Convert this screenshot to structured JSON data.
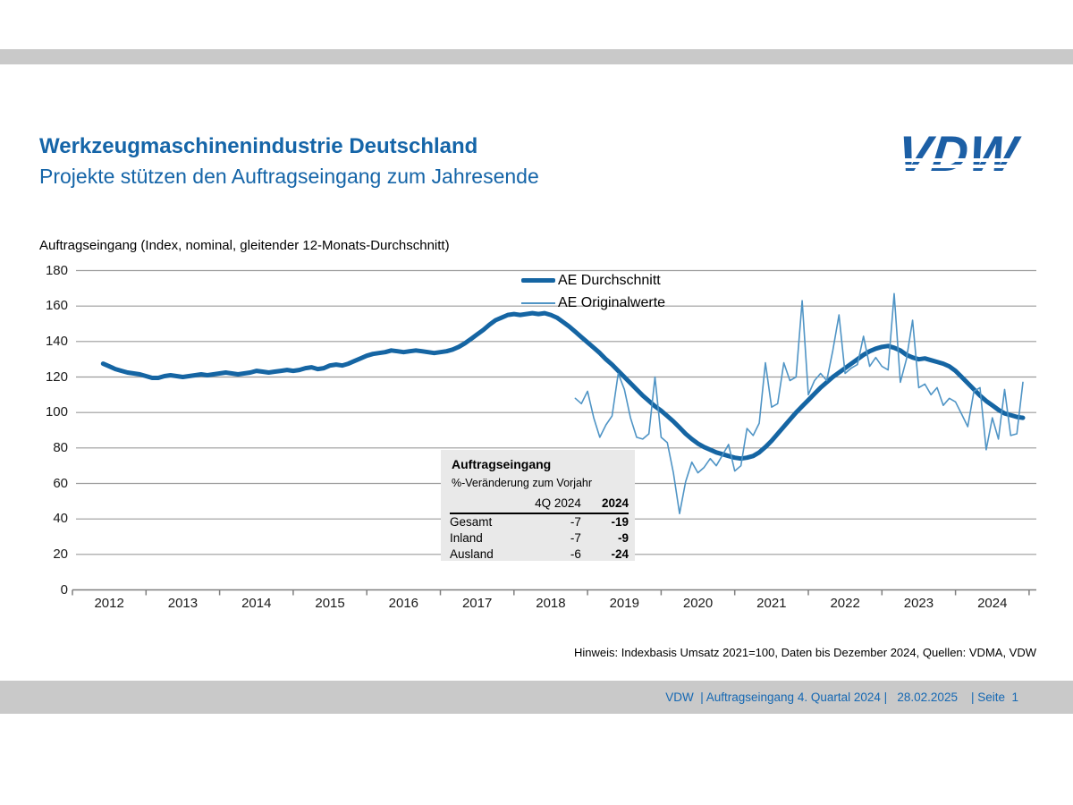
{
  "slide": {
    "title": "Werkzeugmaschinenindustrie Deutschland",
    "subtitle": "Projekte stützen den Auftragseingang zum Jahresende",
    "logo_text": "VDW",
    "footnote": "Hinweis: Indexbasis Umsatz 2021=100, Daten bis Dezember 2024, Quellen: VDMA, VDW",
    "footer_text": "VDW  | Auftragseingang 4. Quartal 2024 |   28.02.2025    | Seite  1"
  },
  "colors": {
    "accent_blue": "#1565a8",
    "logo_blue": "#1c5fa5",
    "avg_line": "#1565a3",
    "orig_line": "#4f94c5",
    "gridline": "#9c9c9c",
    "axis": "#7f7f7f",
    "bar_gray": "#c9c9c9",
    "table_bg": "#e9e9e9",
    "footer_text_blue": "#1568b3"
  },
  "chart_data": {
    "type": "line",
    "title": "Auftragseingang (Index, nominal, gleitender 12-Monats-Durchschnitt)",
    "x_tick_labels": [
      "2012",
      "2013",
      "2014",
      "2015",
      "2016",
      "2017",
      "2018",
      "2019",
      "2020",
      "2021",
      "2022",
      "2023",
      "2024"
    ],
    "y_ticks": [
      0,
      20,
      40,
      60,
      80,
      100,
      120,
      140,
      160,
      180
    ],
    "ylim": [
      0,
      180
    ],
    "grid": "horizontal-only",
    "legend_position": "top-center-inside",
    "series": [
      {
        "name": "AE Durchschnitt",
        "style": "thick",
        "color": "#1565a3",
        "width": 5,
        "start_month": "2012-06",
        "values": [
          127.5,
          126,
          124.5,
          123.5,
          122.5,
          122,
          121.5,
          120.5,
          119.5,
          119.5,
          120.5,
          121,
          120.5,
          120,
          120.5,
          121,
          121.5,
          121,
          121.5,
          122,
          122.5,
          122,
          121.5,
          122,
          122.5,
          123.5,
          123,
          122.5,
          123,
          123.5,
          124,
          123.5,
          124,
          125,
          125.5,
          124.5,
          125,
          126.5,
          127,
          126.5,
          127.5,
          129,
          130.5,
          132,
          133,
          133.5,
          134,
          135,
          134.5,
          134,
          134.5,
          135,
          134.5,
          134,
          133.5,
          134,
          134.5,
          135.5,
          137,
          139,
          141.5,
          144,
          146.5,
          149.5,
          152,
          153.5,
          155,
          155.5,
          155,
          155.5,
          156,
          155.5,
          156,
          155,
          153.5,
          151,
          148.5,
          145.5,
          142.5,
          139.5,
          136.5,
          133.5,
          130,
          127,
          123.5,
          120,
          116.5,
          113,
          109.5,
          106.5,
          103.5,
          101,
          98,
          95,
          91.5,
          88,
          85,
          82.5,
          80.5,
          79,
          77.5,
          76.5,
          75.5,
          74.5,
          74,
          74.5,
          75.5,
          77.5,
          80.5,
          84,
          88,
          92,
          96,
          100,
          103.5,
          107,
          110.5,
          114,
          117,
          120,
          122.5,
          125,
          127.5,
          130,
          132.5,
          134.5,
          136,
          137,
          137.5,
          136.5,
          135,
          132.5,
          131,
          130,
          130.5,
          129.5,
          128.5,
          127.5,
          126,
          123.5,
          120,
          116.5,
          113,
          109.5,
          106.5,
          104,
          101.5,
          99.5,
          98.5,
          97.5,
          97
        ]
      },
      {
        "name": "AE Originalwerte",
        "style": "thin",
        "color": "#4f94c5",
        "width": 1.6,
        "start_month": "2018-11",
        "values": [
          108,
          105,
          112,
          97,
          86,
          93,
          98,
          122,
          113,
          97,
          86,
          85,
          88,
          120,
          86,
          83,
          66,
          43,
          61,
          72,
          66,
          69,
          74,
          70,
          76,
          82,
          67,
          70,
          91,
          87,
          94,
          128,
          103,
          105,
          128,
          118,
          120,
          163,
          110,
          118,
          122,
          118,
          135,
          155,
          122,
          125,
          127,
          143,
          126,
          131,
          126,
          124,
          167,
          117,
          130,
          152,
          114,
          116,
          110,
          114,
          104,
          108,
          106,
          99,
          92,
          112,
          114,
          79,
          97,
          85,
          113,
          87,
          88,
          117
        ]
      }
    ]
  },
  "overlay_table": {
    "title": "Auftragseingang",
    "subtitle": "%-Veränderung zum Vorjahr",
    "columns": [
      "4Q 2024",
      "2024"
    ],
    "rows": [
      [
        "Gesamt",
        "-7",
        "-19"
      ],
      [
        "Inland",
        "-7",
        "-9"
      ],
      [
        "Ausland",
        "-6",
        "-24"
      ]
    ]
  }
}
